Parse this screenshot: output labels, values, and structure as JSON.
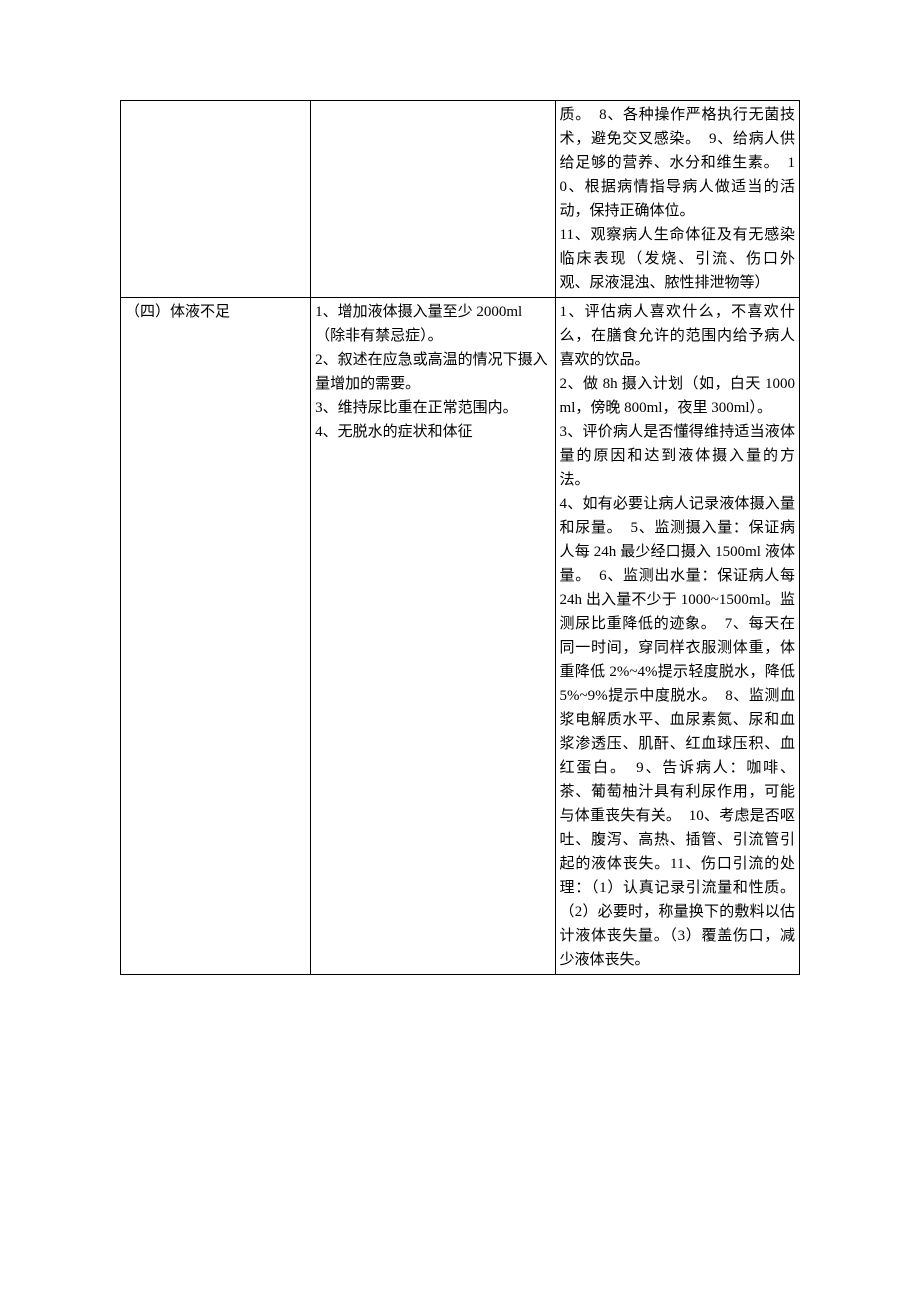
{
  "table": {
    "border_color": "#000000",
    "background_color": "#ffffff",
    "text_color": "#000000",
    "font_family": "SimSun",
    "font_size_pt": 11,
    "columns": [
      {
        "name": "col1",
        "width_pct": 28
      },
      {
        "name": "col2",
        "width_pct": 36
      },
      {
        "name": "col3",
        "width_pct": 36
      }
    ],
    "rows": [
      {
        "col1": "",
        "col2": "",
        "col3": "质。　8、各种操作严格执行无菌技术，避免交叉感染。　9、给病人供给足够的营养、水分和维生素。　10、根据病情指导病人做适当的活动，保持正确体位。\n11、观察病人生命体征及有无感染临床表现（发烧、引流、伤口外观、尿液混浊、脓性排泄物等）"
      },
      {
        "col1": "（四）体液不足",
        "col2": "1、增加液体摄入量至少 2000ml（除非有禁忌症）。\n2、叙述在应急或高温的情况下摄入量增加的需要。\n3、维持尿比重在正常范围内。\n4、无脱水的症状和体征",
        "col3": "1、评估病人喜欢什么，不喜欢什么，在膳食允许的范围内给予病人喜欢的饮品。\n2、做 8h 摄入计划（如，白天 1000ml，傍晚 800ml，夜里 300ml）。\n3、评价病人是否懂得维持适当液体量的原因和达到液体摄入量的方法。\n4、如有必要让病人记录液体摄入量和尿量。　5、监测摄入量：保证病人每 24h 最少经口摄入 1500ml 液体量。　6、监测出水量：保证病人每 24h 出入量不少于 1000~1500ml。监测尿比重降低的迹象。　7、每天在同一时间，穿同样衣服测体重，体重降低 2%~4%提示轻度脱水，降低 5%~9%提示中度脱水。　8、监测血浆电解质水平、血尿素氮、尿和血浆渗透压、肌酐、红血球压积、血红蛋白。　9、告诉病人：咖啡、茶、葡萄柚汁具有利尿作用，可能与体重丧失有关。　10、考虑是否呕吐、腹泻、高热、插管、引流管引起的液体丧失。11、伤口引流的处理：（1）认真记录引流量和性质。（2）必要时，称量换下的敷料以估计液体丧失量。（3）覆盖伤口，减少液体丧失。"
      }
    ]
  }
}
